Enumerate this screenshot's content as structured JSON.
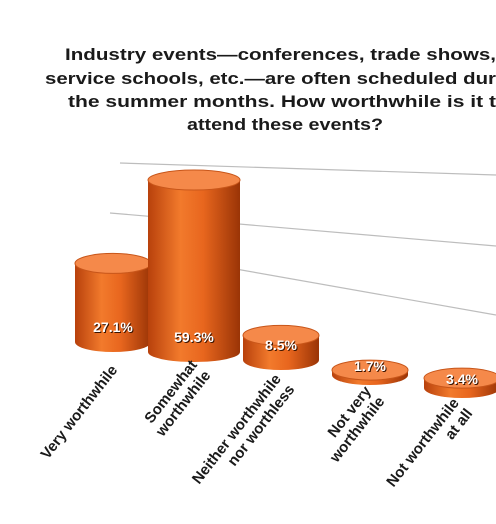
{
  "chart_data": {
    "type": "bar3d",
    "title_lines": [
      "Industry events—conferences, trade shows,",
      "service schools, etc.—are often scheduled dur",
      "the summer months. How worthwhile is it t",
      "attend these events?"
    ],
    "categories": [
      [
        "Very worthwhile"
      ],
      [
        "Somewhat",
        "worthwhile"
      ],
      [
        "Neither worthwhile",
        "nor worthless"
      ],
      [
        "Not very",
        "worthwhile"
      ],
      [
        "Not worthwhile",
        "at all"
      ]
    ],
    "values": [
      27.1,
      59.3,
      8.5,
      1.7,
      3.4
    ],
    "value_labels": [
      "27.1%",
      "59.3%",
      "8.5%",
      "1.7%",
      "3.4%"
    ],
    "color": "#e8661e"
  }
}
